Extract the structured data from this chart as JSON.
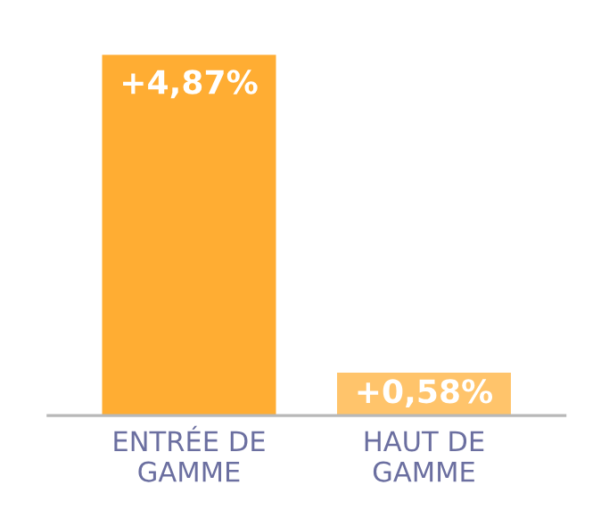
{
  "chart_data": {
    "type": "bar",
    "categories": [
      "ENTRÉE DE\nGAMME",
      "HAUT DE\nGAMME"
    ],
    "values": [
      4.87,
      0.58
    ],
    "colors": [
      "#ffad33",
      "#ffc46b"
    ],
    "value_labels": [
      "+4,87%",
      "+0,58%"
    ],
    "grid": false,
    "legend": false
  }
}
